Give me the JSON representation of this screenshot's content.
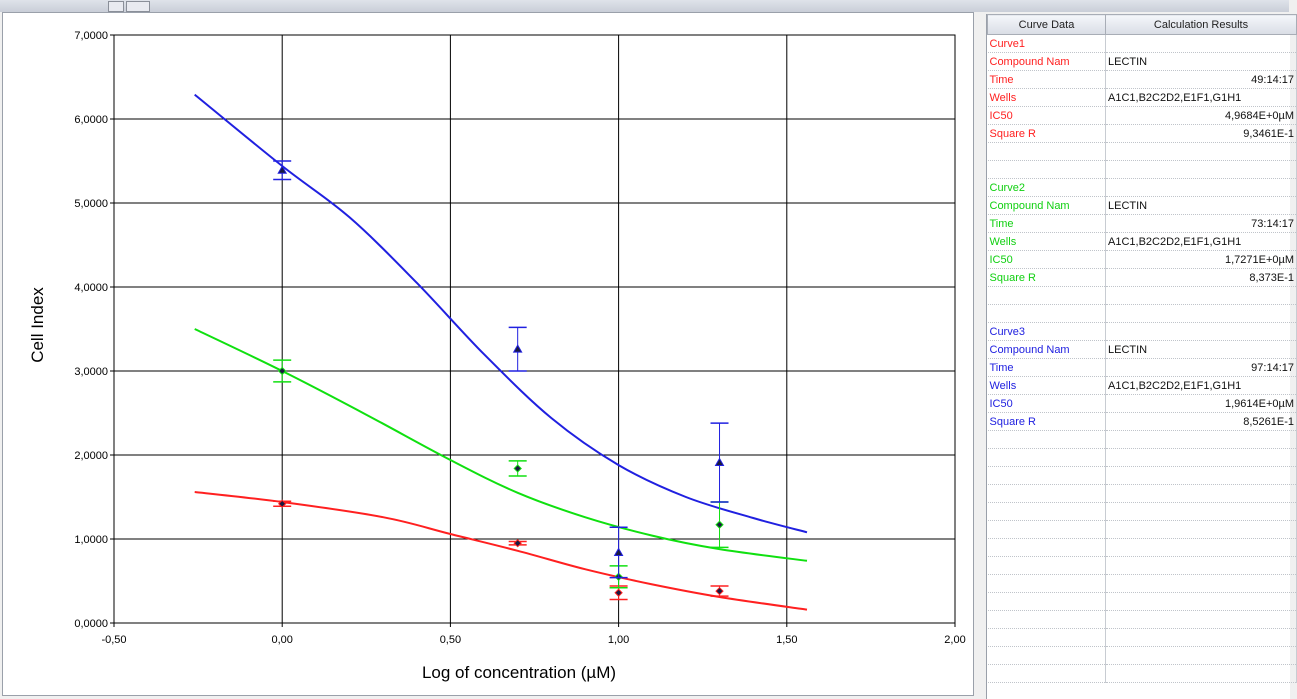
{
  "chart_data": {
    "type": "scatter",
    "xlabel": "Log of concentration (µM)",
    "ylabel": "Cell Index",
    "xlim": [
      -0.5,
      2.0
    ],
    "ylim": [
      0.0,
      7.0
    ],
    "x_ticks": [
      "-0,50",
      "0,00",
      "0,50",
      "1,00",
      "1,50",
      "2,00"
    ],
    "y_ticks": [
      "0,0000",
      "1,0000",
      "2,0000",
      "3,0000",
      "4,0000",
      "5,0000",
      "6,0000",
      "7,0000"
    ],
    "grid": true,
    "series": [
      {
        "name": "Curve1",
        "color": "#ff2020",
        "marker": "diamond",
        "points": [
          {
            "x": 0.0,
            "y": 1.42,
            "err": 0.03
          },
          {
            "x": 0.7,
            "y": 0.95,
            "err": 0.02
          },
          {
            "x": 1.0,
            "y": 0.36,
            "err": 0.08
          },
          {
            "x": 1.3,
            "y": 0.38,
            "err": 0.06
          }
        ],
        "fit": [
          [
            -0.26,
            1.56
          ],
          [
            0.0,
            1.44
          ],
          [
            0.3,
            1.26
          ],
          [
            0.5,
            1.06
          ],
          [
            0.7,
            0.86
          ],
          [
            0.9,
            0.64
          ],
          [
            1.1,
            0.46
          ],
          [
            1.3,
            0.31
          ],
          [
            1.56,
            0.16
          ]
        ]
      },
      {
        "name": "Curve2",
        "color": "#10e010",
        "marker": "diamond",
        "points": [
          {
            "x": 0.0,
            "y": 3.0,
            "err": 0.13
          },
          {
            "x": 0.7,
            "y": 1.84,
            "err": 0.09
          },
          {
            "x": 1.0,
            "y": 0.55,
            "err": 0.13
          },
          {
            "x": 1.3,
            "y": 1.17,
            "err": 0.27
          }
        ],
        "fit": [
          [
            -0.26,
            3.5
          ],
          [
            0.0,
            3.0
          ],
          [
            0.25,
            2.48
          ],
          [
            0.5,
            1.94
          ],
          [
            0.7,
            1.55
          ],
          [
            0.9,
            1.26
          ],
          [
            1.1,
            1.04
          ],
          [
            1.3,
            0.88
          ],
          [
            1.56,
            0.74
          ]
        ]
      },
      {
        "name": "Curve3",
        "color": "#2020e0",
        "marker": "triangle",
        "points": [
          {
            "x": 0.0,
            "y": 5.39,
            "err": 0.11
          },
          {
            "x": 0.7,
            "y": 3.26,
            "err": 0.26
          },
          {
            "x": 1.0,
            "y": 0.84,
            "err": 0.3
          },
          {
            "x": 1.3,
            "y": 1.91,
            "err": 0.47
          }
        ],
        "fit": [
          [
            -0.26,
            6.29
          ],
          [
            0.0,
            5.44
          ],
          [
            0.2,
            4.83
          ],
          [
            0.4,
            4.05
          ],
          [
            0.6,
            3.2
          ],
          [
            0.8,
            2.44
          ],
          [
            1.0,
            1.88
          ],
          [
            1.2,
            1.5
          ],
          [
            1.4,
            1.25
          ],
          [
            1.56,
            1.08
          ]
        ]
      }
    ]
  },
  "results": {
    "headers": [
      "Curve Data",
      "Calculation Results"
    ],
    "rows": [
      {
        "label": "Curve1",
        "value": "",
        "color": "#ff2020"
      },
      {
        "label": "Compound Nam",
        "value": "LECTIN",
        "color": "#ff2020"
      },
      {
        "label": "Time",
        "value": "49:14:17",
        "color": "#ff2020"
      },
      {
        "label": "Wells",
        "value": "A1C1,B2C2D2,E1F1,G1H1",
        "color": "#ff2020"
      },
      {
        "label": "IC50",
        "value": "4,9684E+0µM",
        "color": "#ff2020"
      },
      {
        "label": "Square R",
        "value": "9,3461E-1",
        "color": "#ff2020"
      },
      {
        "label": "",
        "value": "",
        "color": "#000000"
      },
      {
        "label": "",
        "value": "",
        "color": "#000000"
      },
      {
        "label": "Curve2",
        "value": "",
        "color": "#10d010"
      },
      {
        "label": "Compound Nam",
        "value": "LECTIN",
        "color": "#10d010"
      },
      {
        "label": "Time",
        "value": "73:14:17",
        "color": "#10d010"
      },
      {
        "label": "Wells",
        "value": "A1C1,B2C2D2,E1F1,G1H1",
        "color": "#10d010"
      },
      {
        "label": "IC50",
        "value": "1,7271E+0µM",
        "color": "#10d010"
      },
      {
        "label": "Square R",
        "value": "8,373E-1",
        "color": "#10d010"
      },
      {
        "label": "",
        "value": "",
        "color": "#000000"
      },
      {
        "label": "",
        "value": "",
        "color": "#000000"
      },
      {
        "label": "Curve3",
        "value": "",
        "color": "#2020e0"
      },
      {
        "label": "Compound Nam",
        "value": "LECTIN",
        "color": "#2020e0"
      },
      {
        "label": "Time",
        "value": "97:14:17",
        "color": "#2020e0"
      },
      {
        "label": "Wells",
        "value": "A1C1,B2C2D2,E1F1,G1H1",
        "color": "#2020e0"
      },
      {
        "label": "IC50",
        "value": "1,9614E+0µM",
        "color": "#2020e0"
      },
      {
        "label": "Square R",
        "value": "8,5261E-1",
        "color": "#2020e0"
      },
      {
        "label": "",
        "value": "",
        "color": "#000000"
      },
      {
        "label": "",
        "value": "",
        "color": "#000000"
      },
      {
        "label": "",
        "value": "",
        "color": "#000000"
      },
      {
        "label": "",
        "value": "",
        "color": "#000000"
      },
      {
        "label": "",
        "value": "",
        "color": "#000000"
      },
      {
        "label": "",
        "value": "",
        "color": "#000000"
      },
      {
        "label": "",
        "value": "",
        "color": "#000000"
      },
      {
        "label": "",
        "value": "",
        "color": "#000000"
      },
      {
        "label": "",
        "value": "",
        "color": "#000000"
      },
      {
        "label": "",
        "value": "",
        "color": "#000000"
      },
      {
        "label": "",
        "value": "",
        "color": "#000000"
      },
      {
        "label": "",
        "value": "",
        "color": "#000000"
      },
      {
        "label": "",
        "value": "",
        "color": "#000000"
      },
      {
        "label": "",
        "value": "",
        "color": "#000000"
      }
    ]
  }
}
